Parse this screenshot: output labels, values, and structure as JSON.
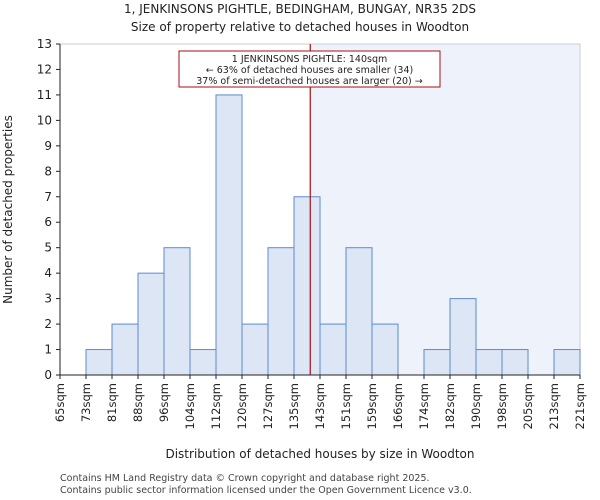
{
  "page": {
    "title": "1, JENKINSONS PIGHTLE, BEDINGHAM, BUNGAY, NR35 2DS",
    "subtitle": "Size of property relative to detached houses in Woodton",
    "footer_line1": "Contains HM Land Registry data © Crown copyright and database right 2025.",
    "footer_line2": "Contains public sector information licensed under the Open Government Licence v3.0."
  },
  "chart_data": {
    "type": "bar",
    "title": "Size of property relative to detached houses in Woodton",
    "xlabel": "Distribution of detached houses by size in Woodton",
    "ylabel": "Number of detached properties",
    "ylim": [
      0,
      13
    ],
    "yticks": [
      0,
      1,
      2,
      3,
      4,
      5,
      6,
      7,
      8,
      9,
      10,
      11,
      12,
      13
    ],
    "bin_edges": [
      "65sqm",
      "73sqm",
      "81sqm",
      "88sqm",
      "96sqm",
      "104sqm",
      "112sqm",
      "120sqm",
      "127sqm",
      "135sqm",
      "143sqm",
      "151sqm",
      "159sqm",
      "166sqm",
      "174sqm",
      "182sqm",
      "190sqm",
      "198sqm",
      "205sqm",
      "213sqm",
      "221sqm"
    ],
    "values": [
      0,
      1,
      2,
      4,
      5,
      1,
      11,
      2,
      5,
      7,
      2,
      5,
      2,
      0,
      1,
      3,
      1,
      1,
      0,
      1
    ],
    "property_size_sqm": 140,
    "marker_bin_index": 9,
    "marker_fraction_in_bin": 0.625,
    "annotation": {
      "line1": "1 JENKINSONS PIGHTLE: 140sqm",
      "line2": "← 63% of detached houses are smaller (34)",
      "line3": "37% of semi-detached houses are larger (20) →"
    },
    "colors": {
      "bar_fill": "#dce6f5",
      "bar_edge": "#5b8bd1",
      "marker": "#a50f15",
      "highlight": "#eef3fb"
    }
  }
}
